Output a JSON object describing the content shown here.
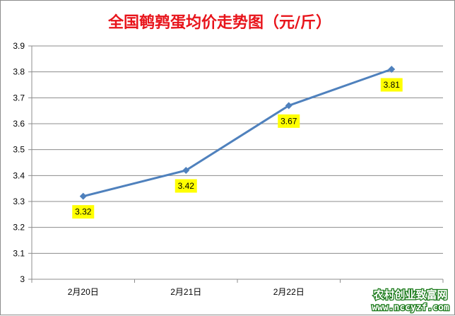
{
  "chart_data": {
    "type": "line",
    "title": "全国鹌鹑蛋均价走势图（元/斤）",
    "categories": [
      "2月20日",
      "2月21日",
      "2月22日",
      ""
    ],
    "series": [
      {
        "values": [
          3.32,
          3.42,
          3.67,
          3.81
        ],
        "data_labels": [
          "3.32",
          "3.42",
          "3.67",
          "3.81"
        ]
      }
    ],
    "ylim": [
      3,
      3.9
    ],
    "y_ticks": [
      "3",
      "3.1",
      "3.2",
      "3.3",
      "3.4",
      "3.5",
      "3.6",
      "3.7",
      "3.8",
      "3.9"
    ],
    "grid": "horizontal",
    "legend": "none",
    "colors": {
      "line": "#4f81bd",
      "grid": "#8c8c8c",
      "label_bg": "#ffff00",
      "title": "#e8141b"
    }
  },
  "watermark": {
    "line1": "农村创业致富网",
    "line2": "www.nccyzf.com"
  }
}
